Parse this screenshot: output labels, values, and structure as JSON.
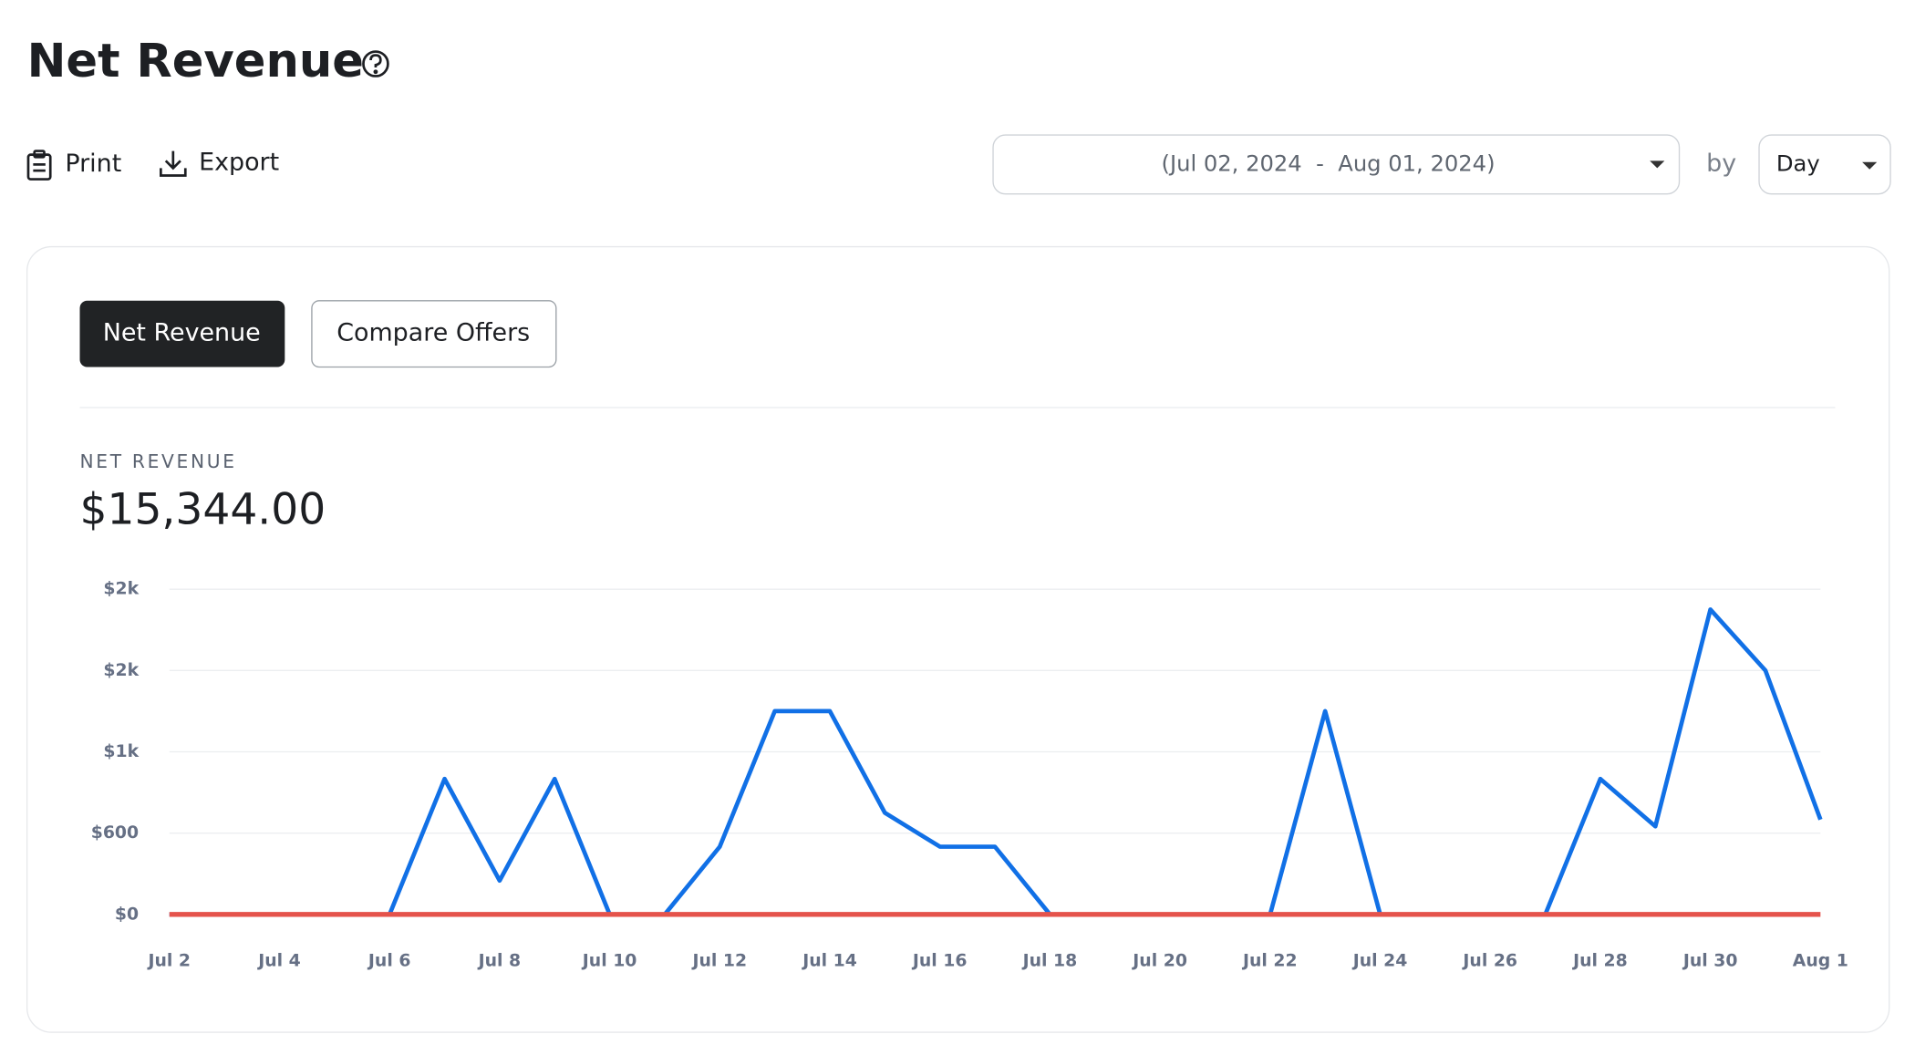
{
  "header": {
    "title": "Net Revenue"
  },
  "toolbar": {
    "print": "Print",
    "export": "Export",
    "date_range": "(Jul 02, 2024  -  Aug 01, 2024)",
    "by": "by",
    "interval": "Day"
  },
  "tabs": [
    "Net Revenue",
    "Compare Offers"
  ],
  "summary": {
    "label": "NET REVENUE",
    "value": "$15,344.00"
  },
  "chart_data": {
    "type": "line",
    "categories": [
      "Jul 2",
      null,
      "Jul 4",
      null,
      "Jul 6",
      null,
      "Jul 8",
      null,
      "Jul 10",
      null,
      "Jul 12",
      null,
      "Jul 14",
      null,
      "Jul 16",
      null,
      "Jul 18",
      null,
      "Jul 20",
      null,
      "Jul 22",
      null,
      "Jul 24",
      null,
      "Jul 26",
      null,
      "Jul 28",
      null,
      "Jul 30",
      null,
      "Aug 1"
    ],
    "series": [
      {
        "color": "#1170e6",
        "values": [
          0,
          0,
          0,
          0,
          0,
          1000,
          250,
          1000,
          0,
          0,
          500,
          1500,
          1500,
          750,
          500,
          500,
          0,
          0,
          0,
          0,
          0,
          1500,
          0,
          0,
          0,
          0,
          1000,
          650,
          2250,
          1800,
          700
        ]
      },
      {
        "color": "#e5534b",
        "values": [
          0,
          0,
          0,
          0,
          0,
          0,
          0,
          0,
          0,
          0,
          0,
          0,
          0,
          0,
          0,
          0,
          0,
          0,
          0,
          0,
          0,
          0,
          0,
          0,
          0,
          0,
          0,
          0,
          0,
          0,
          0
        ]
      }
    ],
    "ylim": [
      0,
      2400
    ],
    "yticks": [
      {
        "value": 0,
        "label": "$0"
      },
      {
        "value": 600,
        "label": "$600"
      },
      {
        "value": 1200,
        "label": "$1k"
      },
      {
        "value": 1800,
        "label": "$2k"
      },
      {
        "value": 2400,
        "label": "$2k"
      }
    ],
    "grid": true
  }
}
